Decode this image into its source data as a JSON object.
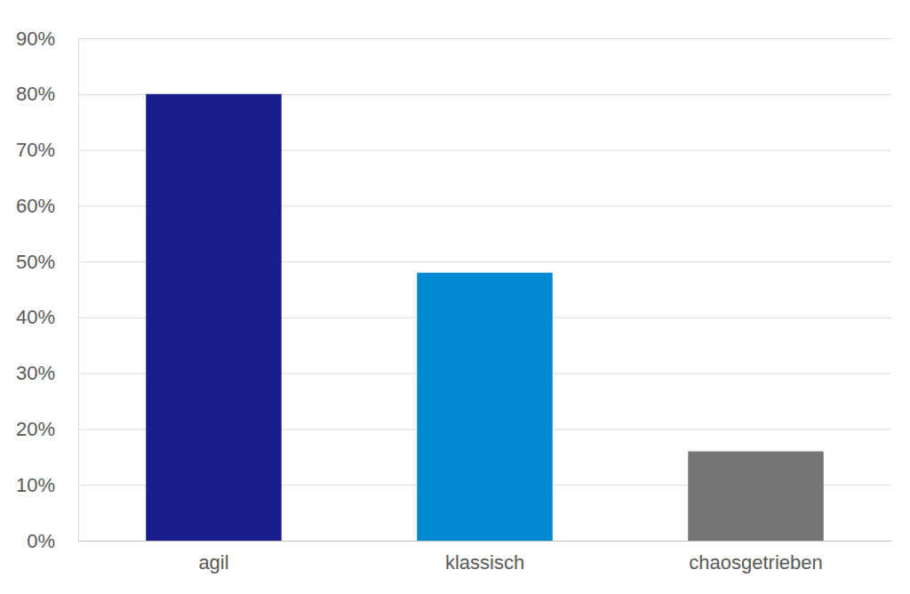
{
  "chart_data": {
    "type": "bar",
    "categories": [
      "agil",
      "klassisch",
      "chaosgetrieben"
    ],
    "values": [
      80,
      48,
      16
    ],
    "colors": [
      "#171e8c",
      "#0088d1",
      "#767676"
    ],
    "ylim": [
      0,
      90
    ],
    "yticks": [
      {
        "value": 0,
        "label": "0%"
      },
      {
        "value": 10,
        "label": "10%"
      },
      {
        "value": 20,
        "label": "20%"
      },
      {
        "value": 30,
        "label": "30%"
      },
      {
        "value": 40,
        "label": "40%"
      },
      {
        "value": 50,
        "label": "50%"
      },
      {
        "value": 60,
        "label": "60%"
      },
      {
        "value": 70,
        "label": "70%"
      },
      {
        "value": 80,
        "label": "80%"
      },
      {
        "value": 90,
        "label": "90%"
      }
    ],
    "grid": true
  }
}
